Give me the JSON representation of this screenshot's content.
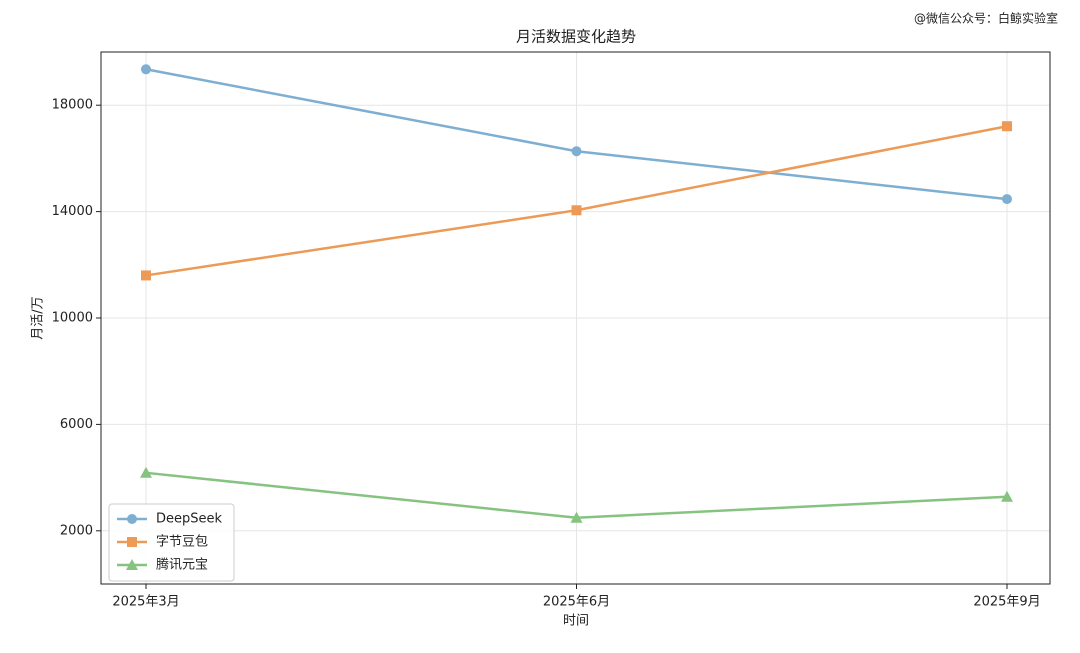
{
  "chart_data": {
    "type": "line",
    "title": "月活数据变化趋势",
    "watermark": "@微信公众号：白鲸实验室",
    "x_label": "时间",
    "y_label": "月活/万",
    "categories": [
      "2025年3月",
      "2025年6月",
      "2025年9月"
    ],
    "series": [
      {
        "name": "DeepSeek",
        "color": "#7eaed1",
        "marker": "circle",
        "values": [
          19350,
          16270,
          14470
        ]
      },
      {
        "name": "字节豆包",
        "color": "#ec9a56",
        "marker": "square",
        "values": [
          11600,
          14050,
          17210
        ]
      },
      {
        "name": "腾讯元宝",
        "color": "#86c380",
        "marker": "triangle",
        "values": [
          4180,
          2490,
          3280
        ]
      }
    ],
    "ylim": [
      0,
      20000
    ],
    "yticks": [
      2000,
      6000,
      10000,
      14000,
      18000
    ],
    "grid": true,
    "legend": "lower left"
  }
}
